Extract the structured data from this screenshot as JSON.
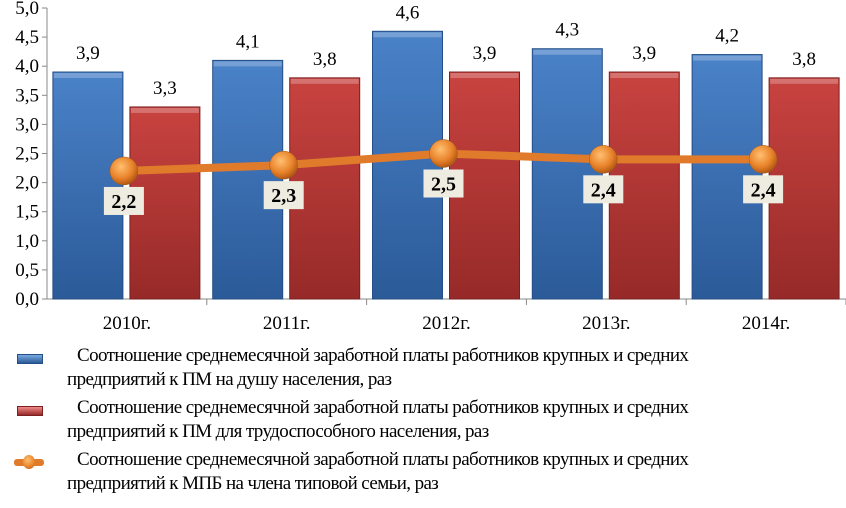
{
  "chart_data": {
    "type": "bar",
    "categories": [
      "2010г.",
      "2011г.",
      "2012г.",
      "2013г.",
      "2014г."
    ],
    "ylim": [
      0,
      5
    ],
    "yticks": [
      "0,0",
      "0,5",
      "1,0",
      "1,5",
      "2,0",
      "2,5",
      "3,0",
      "3,5",
      "4,0",
      "4,5",
      "5,0"
    ],
    "series": [
      {
        "name": "Соотношение среднемесячной заработной платы работников крупных и средних предприятий к ПМ на душу населения, раз",
        "line1": "Соотношение среднемесячной заработной платы работников крупных и средних",
        "line2": "предприятий к ПМ на душу населения, раз",
        "kind": "bar",
        "color": "#3a6fb4",
        "values": [
          3.9,
          4.1,
          4.6,
          4.3,
          4.2
        ],
        "labels": [
          "3,9",
          "4,1",
          "4,6",
          "4,3",
          "4,2"
        ]
      },
      {
        "name": "Соотношение среднемесячной заработной платы работников крупных и средних предприятий к ПМ для трудоспособного населения, раз",
        "line1": "Соотношение среднемесячной заработной платы работников крупных и средних",
        "line2": "предприятий к ПМ для  трудоспособного населения, раз",
        "kind": "bar",
        "color": "#b83432",
        "values": [
          3.3,
          3.8,
          3.9,
          3.9,
          3.8
        ],
        "labels": [
          "3,3",
          "3,8",
          "3,9",
          "3,9",
          "3,8"
        ]
      },
      {
        "name": "Соотношение среднемесячной заработной платы работников крупных и средних предприятий к МПБ на члена типовой семьи, раз",
        "line1": "Соотношение среднемесячной заработной платы работников крупных и средних",
        "line2": "предприятий к МПБ на члена типовой семьи, раз",
        "kind": "line",
        "color": "#e07b2b",
        "values": [
          2.2,
          2.3,
          2.5,
          2.4,
          2.4
        ],
        "labels": [
          "2,2",
          "2,3",
          "2,5",
          "2,4",
          "2,4"
        ]
      }
    ],
    "legend_position": "bottom",
    "grid": false
  }
}
